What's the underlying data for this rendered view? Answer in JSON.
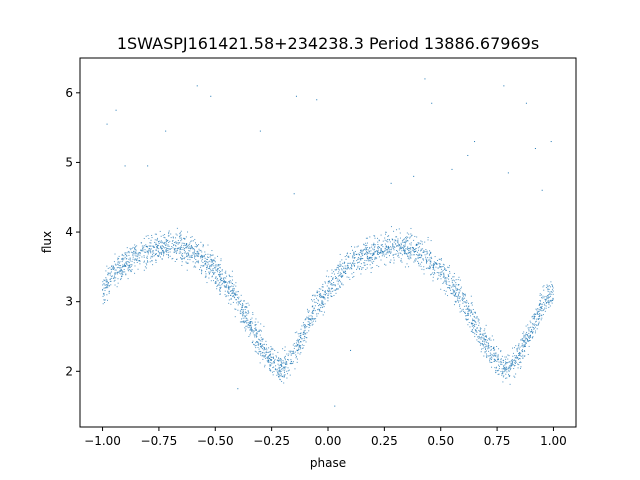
{
  "chart_data": {
    "type": "scatter",
    "title": "1SWASPJ161421.58+234238.3 Period 13886.67969s",
    "xlabel": "phase",
    "ylabel": "flux",
    "xlim": [
      -1.1,
      1.1
    ],
    "ylim": [
      1.2,
      6.5
    ],
    "xticks": [
      -1.0,
      -0.75,
      -0.5,
      -0.25,
      0.0,
      0.25,
      0.5,
      0.75,
      1.0
    ],
    "xtick_labels": [
      "−1.00",
      "−0.75",
      "−0.50",
      "−0.25",
      "0.00",
      "0.25",
      "0.50",
      "0.75",
      "1.00"
    ],
    "yticks": [
      2,
      3,
      4,
      5,
      6
    ],
    "ytick_labels": [
      "2",
      "3",
      "4",
      "5",
      "6"
    ],
    "grid": false,
    "marker_color": "#1f77b4",
    "series": [
      {
        "x": [
          -1.0,
          -0.95,
          -0.9,
          -0.85,
          -0.8,
          -0.75,
          -0.7,
          -0.65,
          -0.6,
          -0.55,
          -0.5,
          -0.45,
          -0.4,
          -0.35,
          -0.3,
          -0.25,
          -0.2,
          -0.15,
          -0.1,
          -0.05,
          0.0,
          0.05,
          0.1,
          0.15,
          0.2,
          0.25,
          0.3,
          0.35,
          0.4,
          0.45,
          0.5,
          0.55,
          0.6,
          0.65,
          0.7,
          0.75,
          0.8,
          0.85,
          0.9,
          0.95,
          1.0
        ],
        "y": [
          3.18,
          3.4,
          3.55,
          3.65,
          3.72,
          3.77,
          3.79,
          3.77,
          3.7,
          3.6,
          3.45,
          3.25,
          3.0,
          2.7,
          2.4,
          2.15,
          2.05,
          2.25,
          2.6,
          2.95,
          3.15,
          3.4,
          3.55,
          3.65,
          3.72,
          3.77,
          3.79,
          3.77,
          3.7,
          3.6,
          3.45,
          3.25,
          3.0,
          2.7,
          2.4,
          2.15,
          2.05,
          2.25,
          2.6,
          2.95,
          3.15
        ]
      }
    ],
    "outliers": {
      "x": [
        -0.98,
        -0.94,
        -0.9,
        -0.8,
        -0.58,
        -0.52,
        -0.3,
        -0.15,
        -0.14,
        -0.05,
        0.38,
        0.43,
        0.46,
        0.62,
        0.65,
        0.78,
        0.8,
        0.88,
        0.95,
        0.99,
        -0.72,
        0.03,
        0.28,
        0.55,
        0.92,
        -0.4,
        0.1
      ],
      "y": [
        5.55,
        5.75,
        4.95,
        4.95,
        6.1,
        5.95,
        5.45,
        4.55,
        5.95,
        5.9,
        4.8,
        6.2,
        5.85,
        5.1,
        5.3,
        6.1,
        4.85,
        5.85,
        4.6,
        5.3,
        5.45,
        1.5,
        4.7,
        4.9,
        5.2,
        1.75,
        2.3
      ]
    }
  }
}
